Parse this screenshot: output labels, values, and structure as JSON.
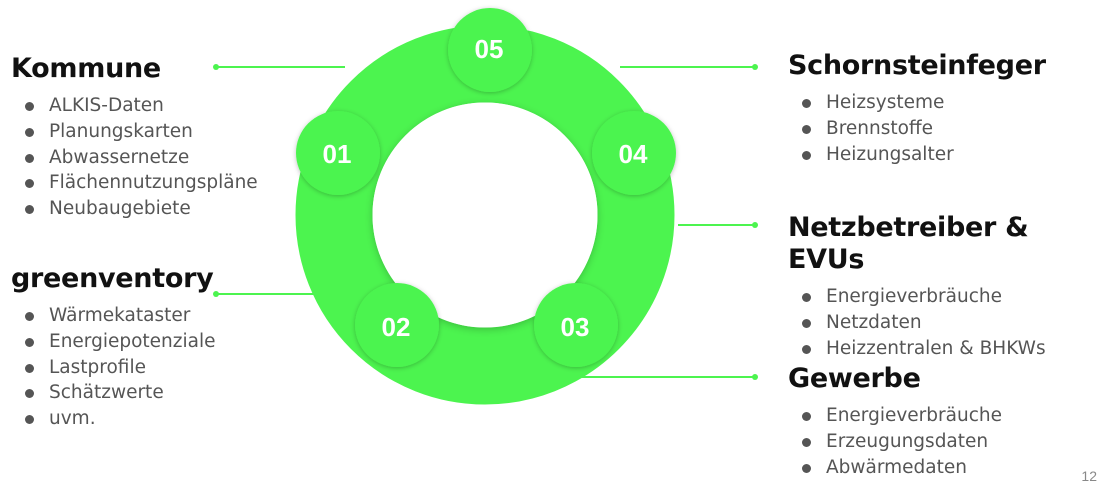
{
  "colors": {
    "accent": "#4cf44f",
    "accent_dark": "#3fdc44",
    "text": "#111111",
    "muted": "#555555"
  },
  "segments": [
    "01",
    "02",
    "03",
    "04",
    "05"
  ],
  "groups": {
    "kommune": {
      "title": "Kommune",
      "items": [
        "ALKIS-Daten",
        "Planungskarten",
        "Abwassernetze",
        "Flächennutzungspläne",
        "Neubaugebiete"
      ]
    },
    "greenventory": {
      "title": "greenventory",
      "items": [
        "Wärmekataster",
        "Energiepotenziale",
        "Lastprofile",
        "Schätzwerte",
        "uvm."
      ]
    },
    "schornsteinfeger": {
      "title": "Schornsteinfeger",
      "items": [
        "Heizsysteme",
        "Brennstoffe",
        "Heizungsalter"
      ]
    },
    "netzbetreiber": {
      "title": "Netzbetreiber & EVUs",
      "items": [
        "Energieverbräuche",
        "Netzdaten",
        "Heizzentralen & BHKWs"
      ]
    },
    "gewerbe": {
      "title": "Gewerbe",
      "items": [
        "Energieverbräuche",
        "Erzeugungsdaten",
        "Abwärmedaten"
      ]
    }
  },
  "page_number": "12"
}
